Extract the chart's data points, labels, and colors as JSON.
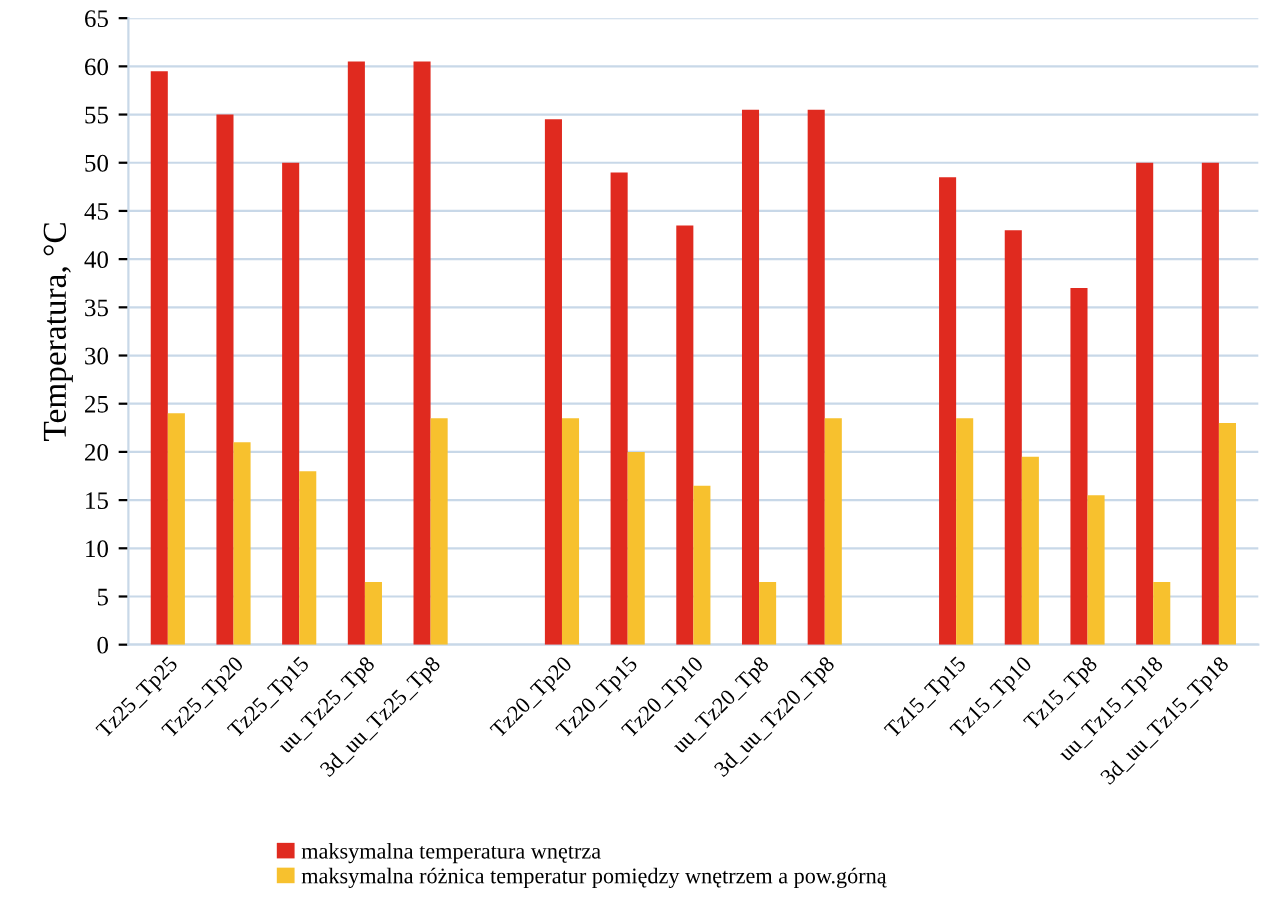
{
  "chart_data": {
    "type": "bar",
    "ylabel": "Temperatura, °C",
    "categories": [
      "Tz25_Tp25",
      "Tz25_Tp20",
      "Tz25_Tp15",
      "uu_Tz25_Tp8",
      "3d_uu_Tz25_Tp8",
      null,
      "Tz20_Tp20",
      "Tz20_Tp15",
      "Tz20_Tp10",
      "uu_Tz20_Tp8",
      "3d_uu_Tz20_Tp8",
      null,
      "Tz15_Tp15",
      "Tz15_Tp10",
      "Tz15_Tp8",
      "uu_Tz15_Tp18",
      "3d_uu_Tz15_Tp18"
    ],
    "series": [
      {
        "name": "maksymalna temperatura wnętrza",
        "color": "#e02a1f",
        "values": [
          59.5,
          55,
          50,
          60.5,
          60.5,
          null,
          54.5,
          49,
          43.5,
          55.5,
          55.5,
          null,
          48.5,
          43,
          37,
          50,
          50
        ]
      },
      {
        "name": "maksymalna różnica temperatur pomiędzy wnętrzem a pow.górną",
        "color": "#f7c12e",
        "values": [
          24,
          21,
          18,
          6.5,
          23.5,
          null,
          23.5,
          20,
          16.5,
          6.5,
          23.5,
          null,
          23.5,
          19.5,
          15.5,
          6.5,
          23
        ]
      }
    ],
    "ylim": [
      0,
      65
    ],
    "yticks": [
      0,
      5,
      10,
      15,
      20,
      25,
      30,
      35,
      40,
      45,
      50,
      55,
      60,
      65
    ],
    "grid": "y",
    "legend": "bottom"
  }
}
